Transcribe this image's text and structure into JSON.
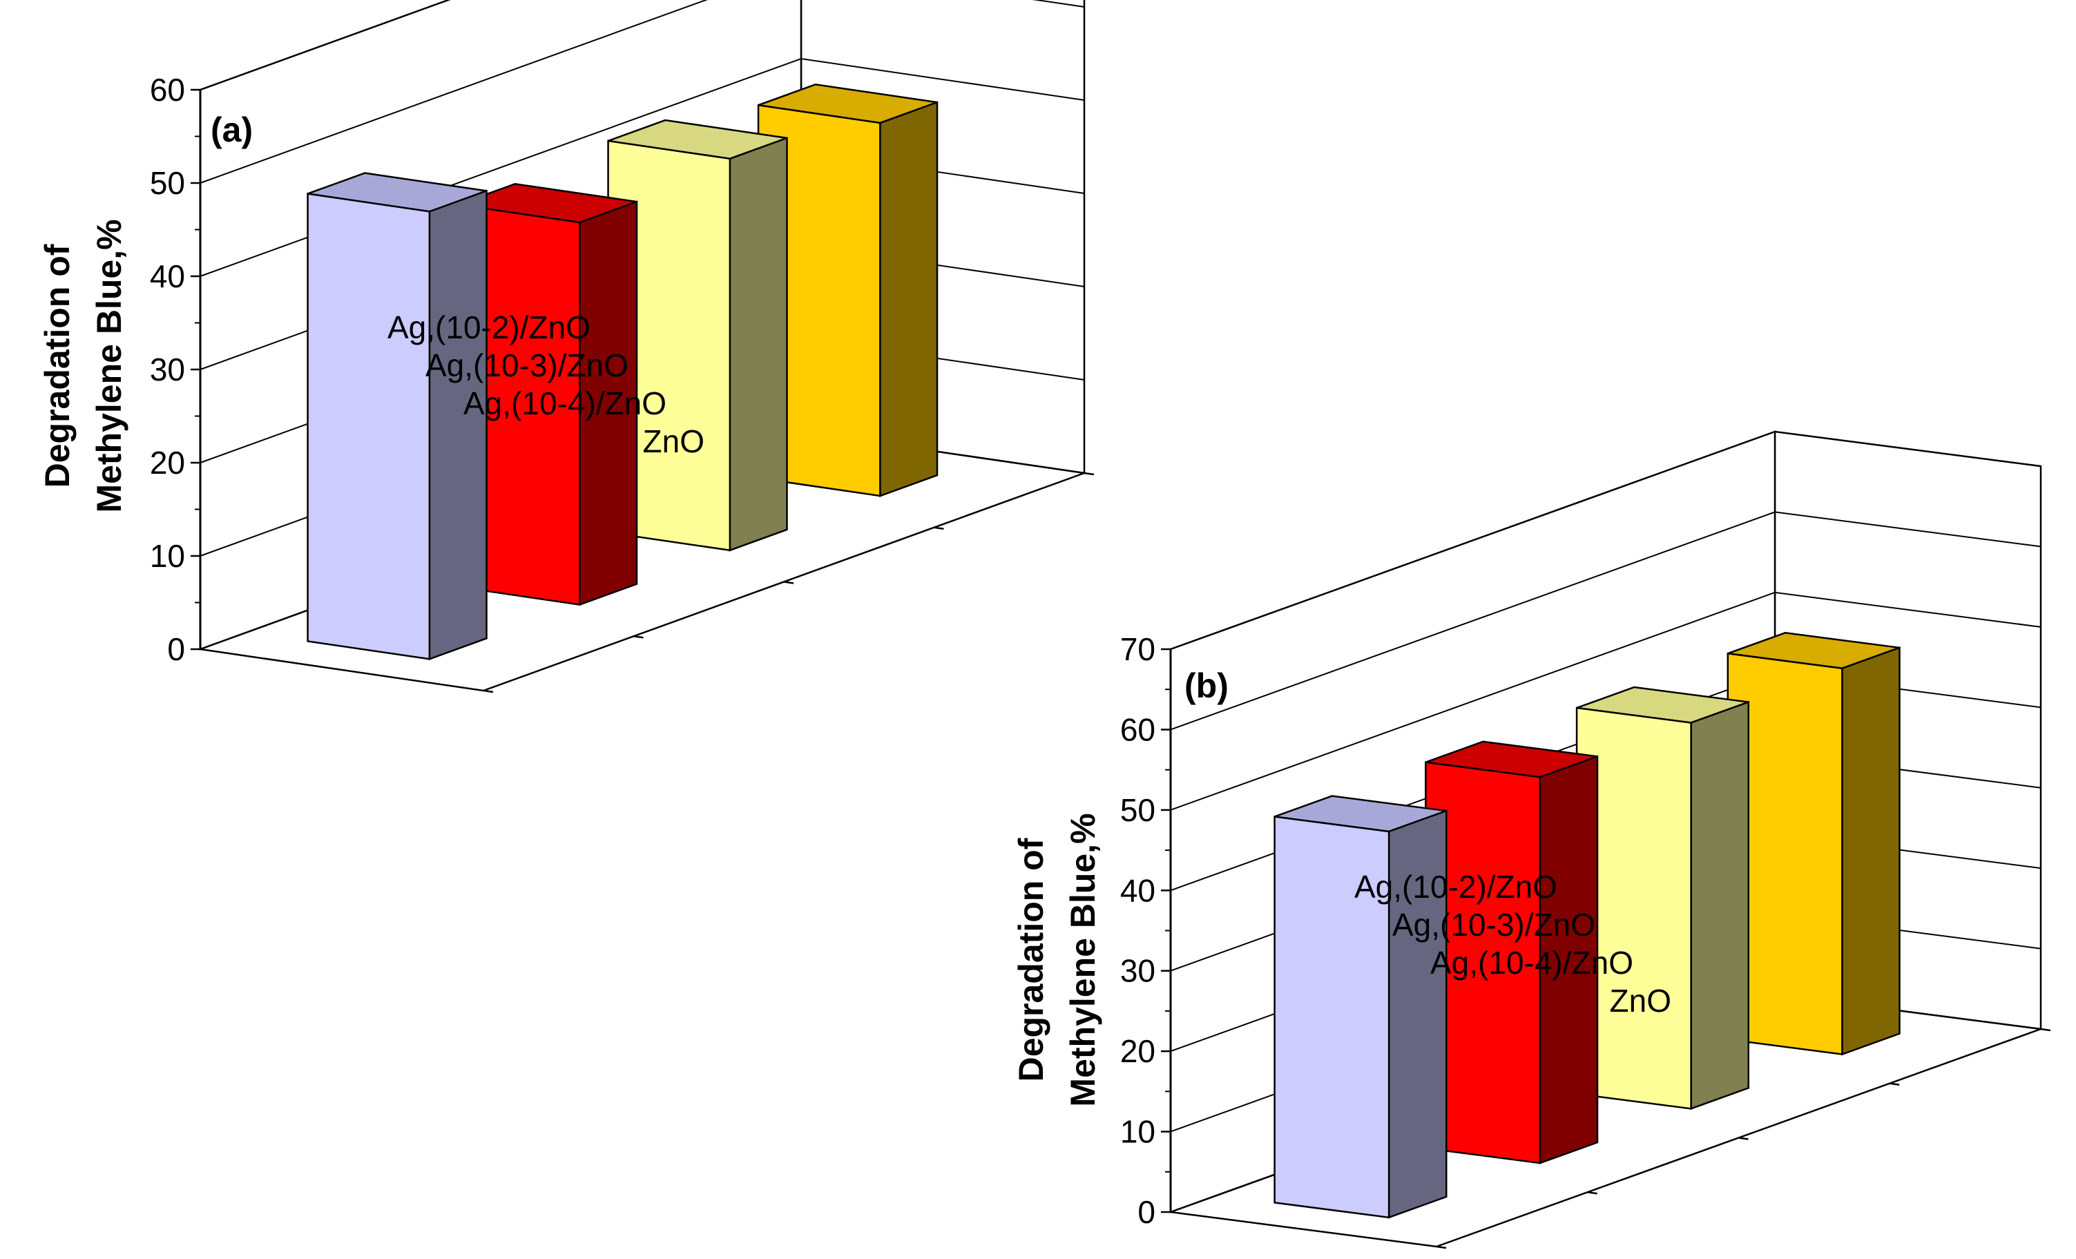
{
  "chart_data": [
    {
      "type": "bar",
      "panel_label": "(a)",
      "ylabel_lines": [
        "Degradation of",
        "Methylene Blue,%"
      ],
      "ylim": [
        0,
        60
      ],
      "yticks": [
        0,
        10,
        20,
        30,
        40,
        50,
        60
      ],
      "grid": true,
      "categories": [
        "ZnO",
        "Ag,(10-4)/ZnO",
        "Ag,(10-3)/ZnO",
        "Ag,(10-2)/ZnO"
      ],
      "values": [
        48,
        41,
        42,
        40
      ],
      "colors": {
        "front": [
          "#ccccff",
          "#ff0000",
          "#ffff99",
          "#ffcc00"
        ],
        "side": [
          "#666680",
          "#800000",
          "#808050",
          "#806600"
        ],
        "top": [
          "#a8a8d8",
          "#cc0000",
          "#d8d880",
          "#d8ac00"
        ]
      }
    },
    {
      "type": "bar",
      "panel_label": "(b)",
      "ylabel_lines": [
        "Degradation of",
        "Methylene Blue,%"
      ],
      "ylim": [
        0,
        70
      ],
      "yticks": [
        0,
        10,
        20,
        30,
        40,
        50,
        60,
        70
      ],
      "grid": true,
      "categories": [
        "ZnO",
        "Ag,(10-4)/ZnO",
        "Ag,(10-3)/ZnO",
        "Ag,(10-2)/ZnO"
      ],
      "values": [
        48,
        48,
        48,
        48
      ],
      "colors": {
        "front": [
          "#ccccff",
          "#ff0000",
          "#ffff99",
          "#ffcc00"
        ],
        "side": [
          "#666680",
          "#800000",
          "#808050",
          "#806600"
        ],
        "top": [
          "#a8a8d8",
          "#cc0000",
          "#d8d880",
          "#d8ac00"
        ]
      }
    }
  ]
}
